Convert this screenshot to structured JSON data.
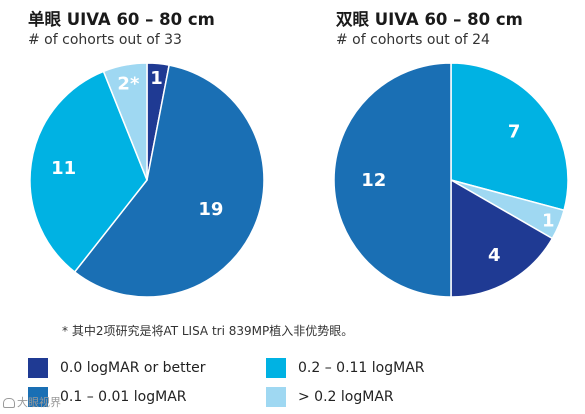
{
  "chart_data": [
    {
      "type": "pie",
      "title": "单眼 UIVA 60 – 80 cm",
      "subtitle": "# of cohorts out of 33",
      "slices": [
        {
          "category": "0.0 logMAR or better",
          "value": 1,
          "label": "1",
          "color": "#1f3a93"
        },
        {
          "category": "0.1 – 0.01 logMAR",
          "value": 19,
          "label": "19",
          "color": "#1a6fb4"
        },
        {
          "category": "0.2 – 0.11 logMAR",
          "value": 11,
          "label": "11",
          "color": "#00b2e3"
        },
        {
          "category": "> 0.2 logMAR",
          "value": 2,
          "label": "2*",
          "color": "#9fd8f2"
        }
      ]
    },
    {
      "type": "pie",
      "title": "双眼 UIVA 60 – 80 cm",
      "subtitle": "# of cohorts out of 24",
      "slices": [
        {
          "category": "0.2 – 0.11 logMAR",
          "value": 7,
          "label": "7",
          "color": "#00b2e3"
        },
        {
          "category": "> 0.2 logMAR",
          "value": 1,
          "label": "1",
          "color": "#9fd8f2"
        },
        {
          "category": "0.0 logMAR or better",
          "value": 4,
          "label": "4",
          "color": "#1f3a93"
        },
        {
          "category": "0.1 – 0.01 logMAR",
          "value": 12,
          "label": "12",
          "color": "#1a6fb4"
        }
      ]
    }
  ],
  "footnote": "* 其中2项研究是将AT LISA tri 839MP植入非优势眼。",
  "legend": [
    {
      "label": "0.0 logMAR or better",
      "color": "#1f3a93"
    },
    {
      "label": "0.2 – 0.11 logMAR",
      "color": "#00b2e3"
    },
    {
      "label": "0.1 – 0.01 logMAR",
      "color": "#1a6fb4"
    },
    {
      "label": "> 0.2 logMAR",
      "color": "#9fd8f2"
    }
  ],
  "watermark": "大眼视界"
}
